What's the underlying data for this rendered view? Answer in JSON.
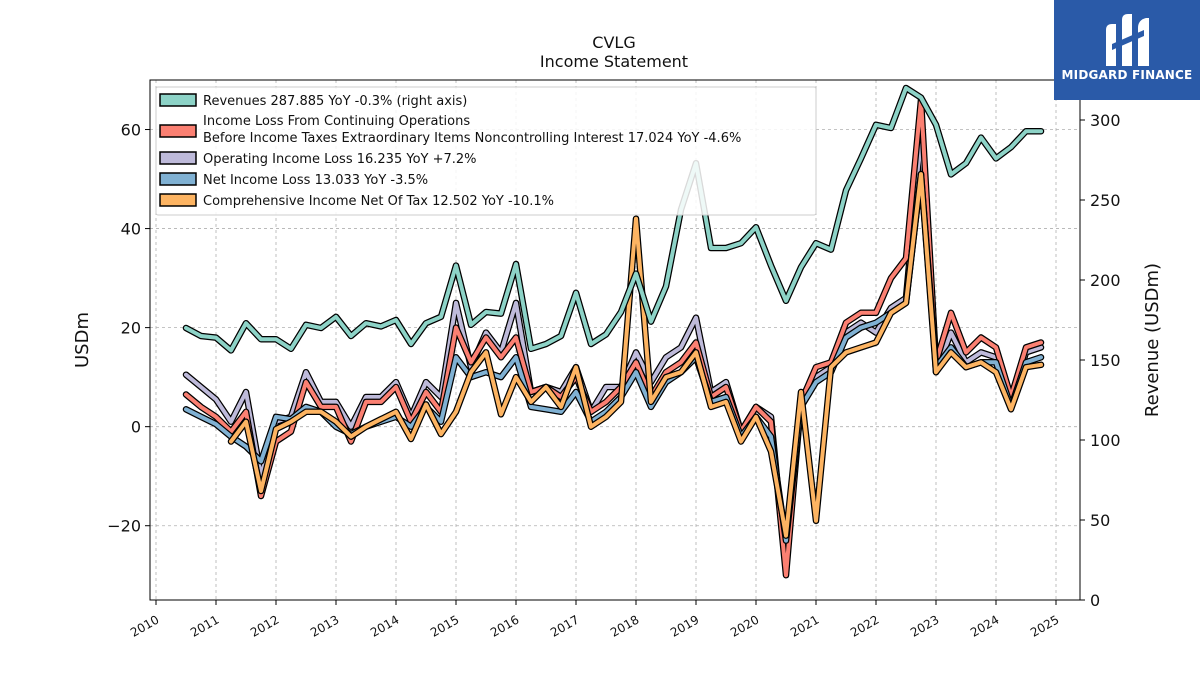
{
  "brand": {
    "name": "MIDGARD FINANCE",
    "bg_color": "#2a5aa8"
  },
  "chart_data": {
    "type": "line",
    "title": "CVLG",
    "subtitle": "Income Statement",
    "ylabel": "USDm",
    "y2label": "Revenue (USDm)",
    "ylim": [
      -35,
      70
    ],
    "y2lim": [
      0,
      325
    ],
    "xlim": [
      2009.9,
      2025.4
    ],
    "yticks": [
      -20,
      0,
      20,
      40,
      60
    ],
    "y2ticks": [
      0,
      50,
      100,
      150,
      200,
      250,
      300
    ],
    "xticks": [
      2010,
      2011,
      2012,
      2013,
      2014,
      2015,
      2016,
      2017,
      2018,
      2019,
      2020,
      2021,
      2022,
      2023,
      2024,
      2025
    ],
    "grid": true,
    "legend_position": "top-left",
    "x": [
      2010.5,
      2010.75,
      2011.0,
      2011.25,
      2011.5,
      2011.75,
      2012.0,
      2012.25,
      2012.5,
      2012.75,
      2013.0,
      2013.25,
      2013.5,
      2013.75,
      2014.0,
      2014.25,
      2014.5,
      2014.75,
      2015.0,
      2015.25,
      2015.5,
      2015.75,
      2016.0,
      2016.25,
      2016.5,
      2016.75,
      2017.0,
      2017.25,
      2017.5,
      2017.75,
      2018.0,
      2018.25,
      2018.5,
      2018.75,
      2019.0,
      2019.25,
      2019.5,
      2019.75,
      2020.0,
      2020.25,
      2020.5,
      2020.75,
      2021.0,
      2021.25,
      2021.5,
      2021.75,
      2022.0,
      2022.25,
      2022.5,
      2022.75,
      2023.0,
      2023.25,
      2023.5,
      2023.75,
      2024.0,
      2024.25,
      2024.5,
      2024.75
    ],
    "series": [
      {
        "name": "Revenues",
        "legend_label": "Revenues  287.885 YoY -0.3% (right axis)",
        "axis": "right",
        "color": "#8dd3c7",
        "values": [
          170,
          165,
          164,
          156,
          173,
          163,
          163,
          157,
          172,
          170,
          177,
          165,
          173,
          171,
          175,
          160,
          173,
          177,
          209,
          172,
          180,
          179,
          210,
          157,
          160,
          165,
          192,
          160,
          166,
          180,
          204,
          174,
          196,
          244,
          273,
          220,
          220,
          223,
          233,
          209,
          187,
          208,
          223,
          219,
          256,
          276,
          297,
          295,
          320,
          314,
          297,
          266,
          273,
          289,
          276,
          283,
          293,
          293
        ]
      },
      {
        "name": "Income Loss From Continuing Operations Before Income Taxes Extraordinary Items Noncontrolling Interest",
        "legend_label_1": "Income Loss From Continuing Operations",
        "legend_label_2": "Before Income Taxes Extraordinary Items Noncontrolling Interest  17.024 YoY -4.6%",
        "axis": "left",
        "color": "#fb8072",
        "values": [
          6.5,
          4,
          2,
          -1,
          3,
          -14,
          -3,
          -1,
          9,
          4,
          4,
          -3,
          5,
          5,
          8,
          1,
          7,
          3,
          20,
          13,
          18,
          14,
          18,
          7,
          8,
          6,
          10,
          3,
          5,
          8,
          13,
          6,
          11,
          13,
          17,
          6,
          8,
          -1,
          4,
          1,
          -30,
          5,
          12,
          13,
          21,
          23,
          23,
          30,
          34,
          66,
          13,
          23,
          15,
          18,
          16,
          6,
          16,
          17
        ]
      },
      {
        "name": "Operating Income Loss",
        "legend_label": "Operating Income Loss  16.235 YoY +7.2%",
        "axis": "left",
        "color": "#bebada",
        "values": [
          10.5,
          8,
          5.5,
          1,
          7,
          -10,
          1,
          2,
          11,
          5,
          5,
          0,
          6,
          6,
          9,
          2,
          9,
          6,
          25,
          12,
          19,
          15,
          25,
          7,
          8,
          7,
          12,
          3,
          8,
          8,
          15,
          9,
          14,
          16,
          22,
          7,
          9,
          -1,
          4,
          2,
          -29,
          6,
          10,
          12,
          19,
          21,
          19,
          24,
          26,
          59,
          11,
          19,
          13,
          15,
          14,
          5,
          15,
          16
        ]
      },
      {
        "name": "Net Income Loss",
        "legend_label": "Net Income Loss  13.033 YoY -3.5%",
        "axis": "left",
        "color": "#80b1d3",
        "values": [
          3.5,
          2,
          0.5,
          -2,
          -4,
          -7,
          2,
          1.5,
          4,
          3,
          0,
          -1.5,
          0,
          1,
          2,
          0,
          4,
          1,
          14,
          10,
          11,
          10,
          14,
          4,
          3.5,
          3,
          7,
          1,
          3,
          6,
          11,
          4,
          9,
          11,
          14,
          5,
          6,
          -2,
          2,
          -2,
          -23,
          4,
          9,
          11,
          18,
          20,
          21,
          23,
          25,
          51,
          12,
          16,
          12,
          13,
          13,
          4,
          13,
          14
        ]
      },
      {
        "name": "Comprehensive Income Net Of Tax",
        "legend_label": "Comprehensive Income Net Of Tax  12.502 YoY -10.1%",
        "axis": "left",
        "color": "#fdb462",
        "values": [
          null,
          null,
          null,
          -3,
          1,
          -13,
          -0.5,
          1,
          3,
          3,
          1,
          -2,
          0,
          1.5,
          3,
          -2.5,
          4.5,
          -1.5,
          3,
          11,
          15,
          2.5,
          10,
          5,
          8,
          4,
          12,
          0,
          2,
          5,
          42,
          5,
          10,
          11,
          15,
          4,
          5,
          -3,
          2,
          -5,
          -22,
          7,
          -19,
          12,
          15,
          16,
          17,
          23,
          25,
          51,
          11,
          15,
          12,
          13,
          11,
          3.5,
          12,
          12.5
        ]
      }
    ]
  }
}
